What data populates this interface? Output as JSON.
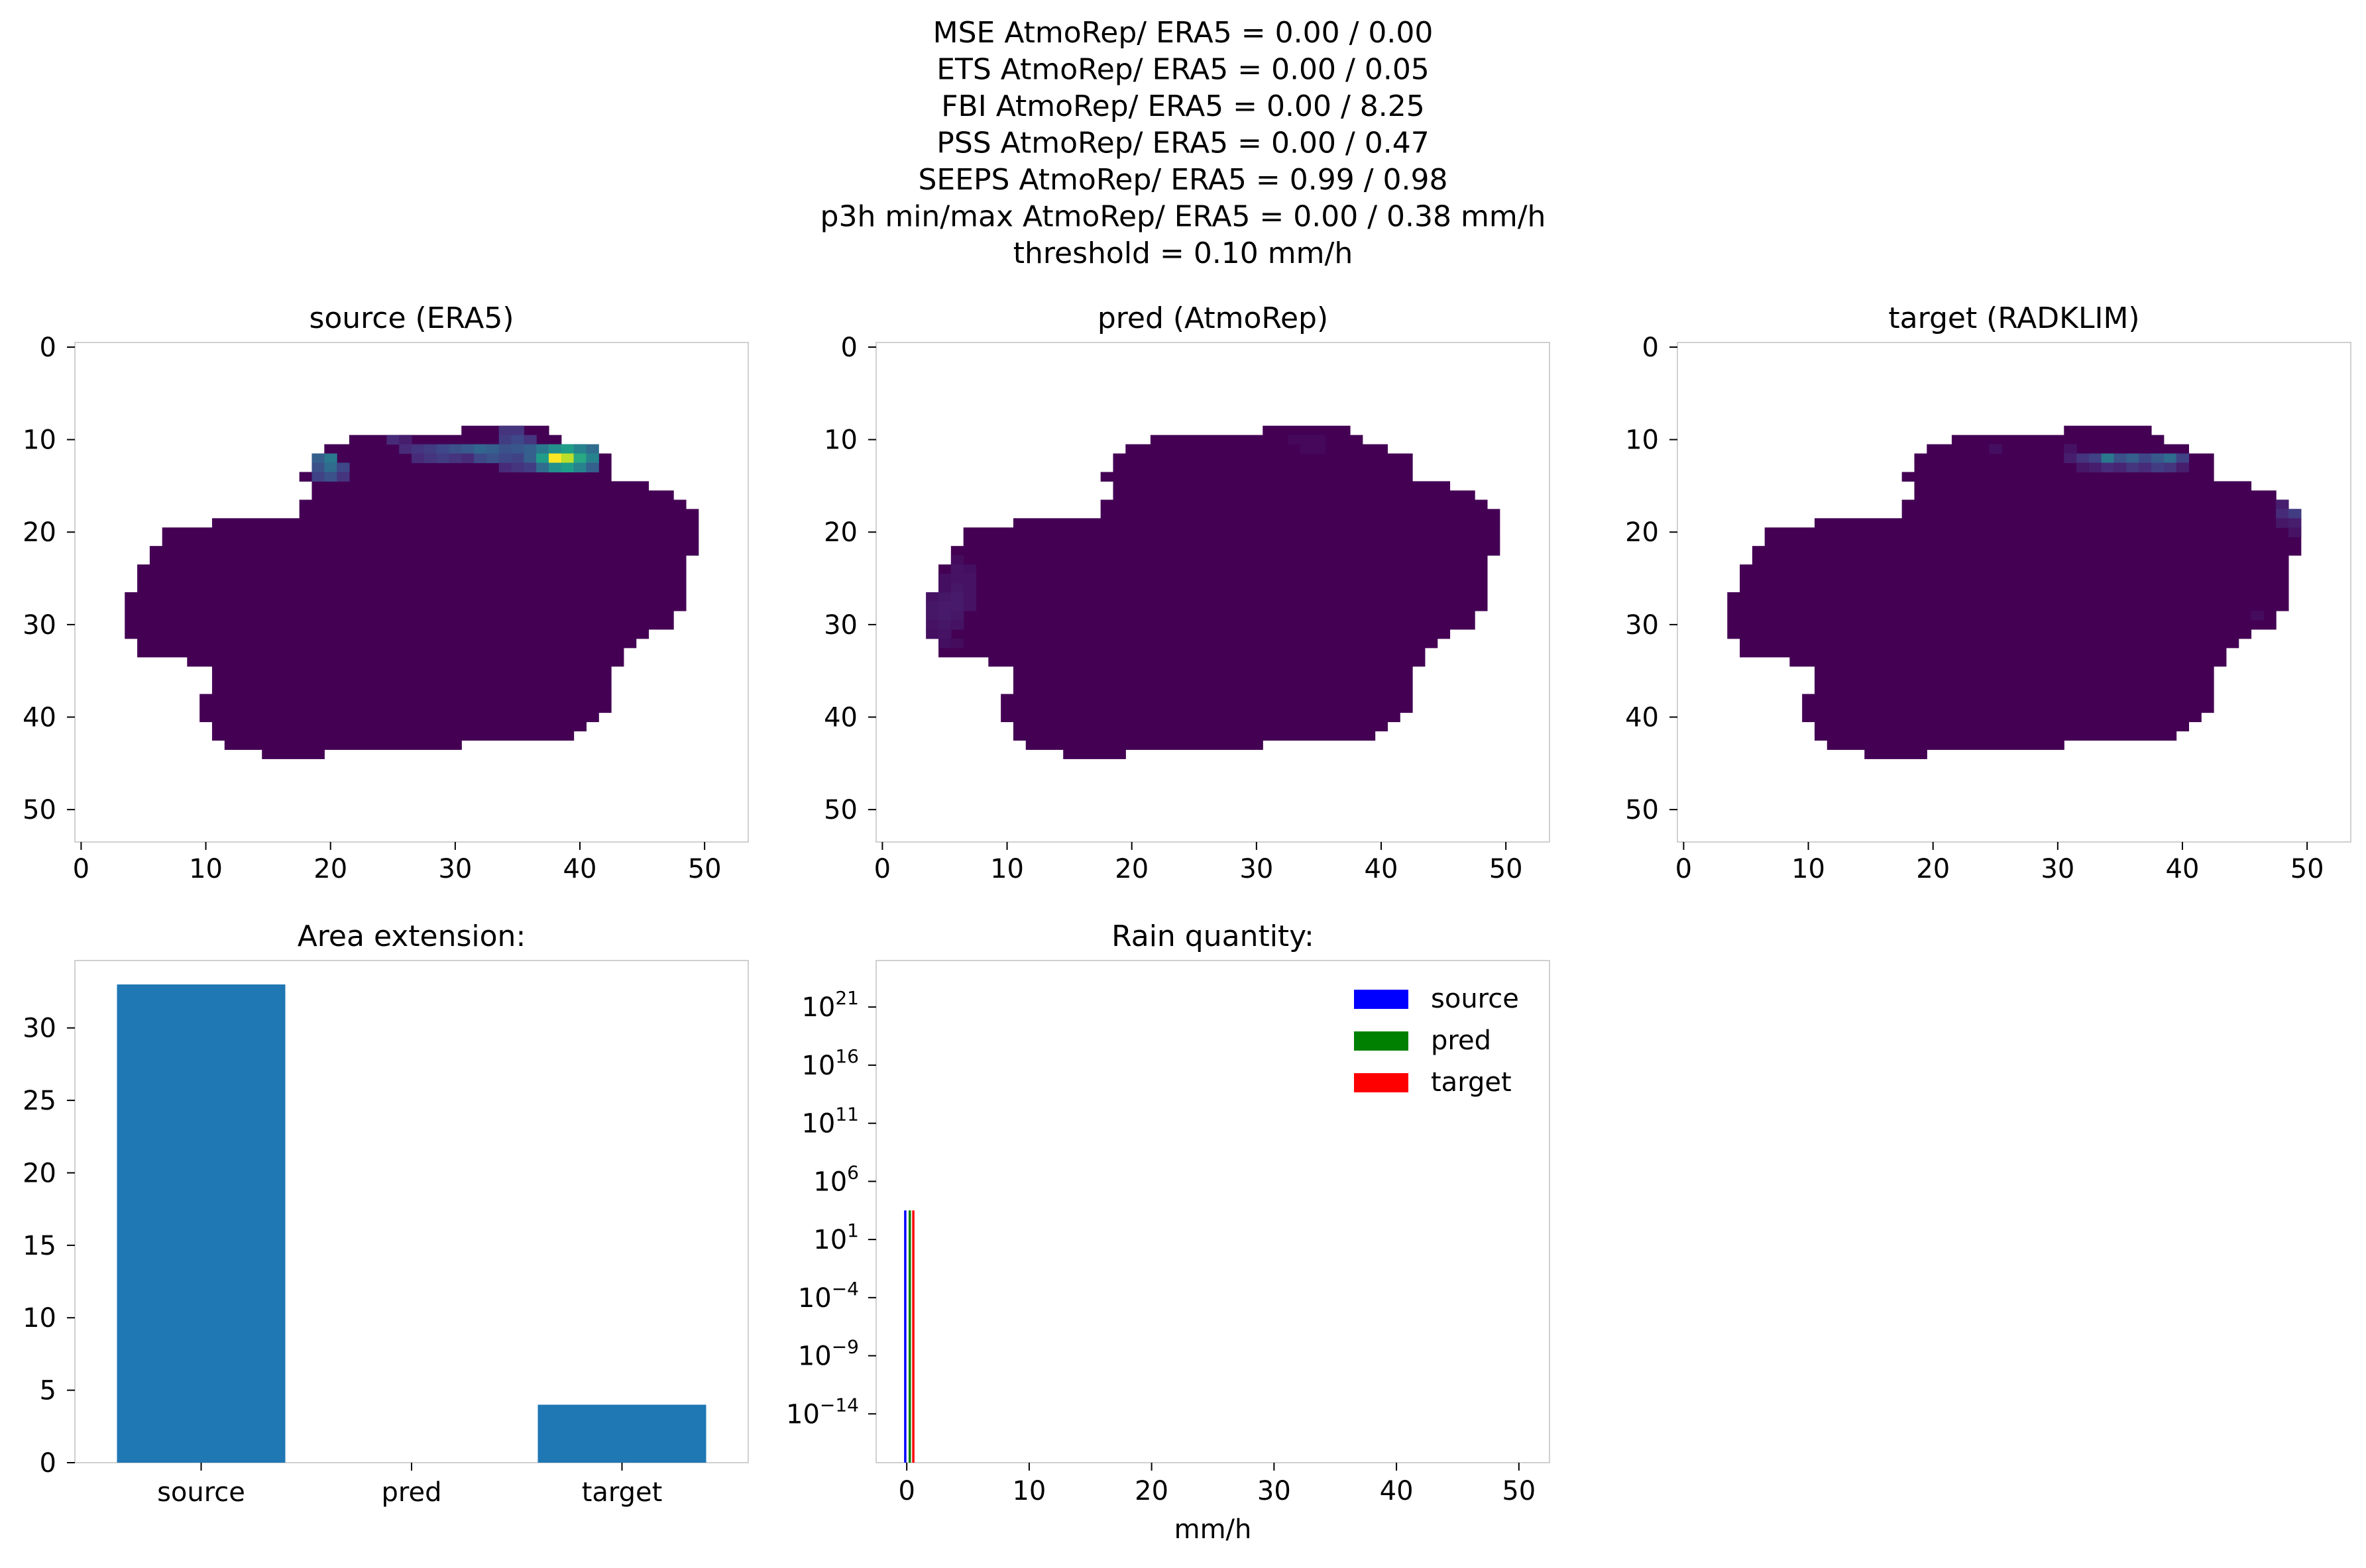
{
  "suptitle_lines": [
    "MSE AtmoRep/ ERA5 = 0.00 / 0.00",
    "ETS AtmoRep/ ERA5 = 0.00 / 0.05",
    "FBI AtmoRep/ ERA5 = 0.00 / 8.25",
    "PSS AtmoRep/ ERA5 = 0.00 / 0.47",
    "SEEPS AtmoRep/ ERA5 = 0.99 / 0.98",
    "p3h min/max AtmoRep/ ERA5 = 0.00 / 0.38 mm/h",
    "threshold = 0.10 mm/h"
  ],
  "colors": {
    "viridis_low": "#440154",
    "bar": "#1f77b4",
    "source": "#0000ff",
    "pred": "#008000",
    "target": "#ff0000",
    "frame": "#d0d0d0"
  },
  "chart_data": [
    {
      "type": "heatmap",
      "title": "source (ERA5)",
      "colormap": "viridis",
      "x_ticks": [
        0,
        10,
        20,
        30,
        40,
        50
      ],
      "y_ticks": [
        0,
        10,
        20,
        30,
        40,
        50
      ],
      "xlim": [
        -0.5,
        53.5
      ],
      "ylim": [
        53.5,
        -0.5
      ],
      "grid": false,
      "mask_rows": [
        {
          "row": 9,
          "start": 31,
          "end": 37
        },
        {
          "row": 10,
          "start": 22,
          "end": 38
        },
        {
          "row": 11,
          "start": 20,
          "end": 40
        },
        {
          "row": 12,
          "start": 19,
          "end": 42
        },
        {
          "row": 13,
          "start": 19,
          "end": 42
        },
        {
          "row": 14,
          "start": 18,
          "end": 42
        },
        {
          "row": 15,
          "start": 19,
          "end": 45
        },
        {
          "row": 16,
          "start": 19,
          "end": 47
        },
        {
          "row": 17,
          "start": 18,
          "end": 48
        },
        {
          "row": 18,
          "start": 18,
          "end": 49
        },
        {
          "row": 19,
          "start": 11,
          "end": 49
        },
        {
          "row": 20,
          "start": 7,
          "end": 49
        },
        {
          "row": 21,
          "start": 7,
          "end": 49
        },
        {
          "row": 22,
          "start": 6,
          "end": 49
        },
        {
          "row": 23,
          "start": 6,
          "end": 48
        },
        {
          "row": 24,
          "start": 5,
          "end": 48
        },
        {
          "row": 25,
          "start": 5,
          "end": 48
        },
        {
          "row": 26,
          "start": 5,
          "end": 48
        },
        {
          "row": 27,
          "start": 4,
          "end": 48
        },
        {
          "row": 28,
          "start": 4,
          "end": 48
        },
        {
          "row": 29,
          "start": 4,
          "end": 47
        },
        {
          "row": 30,
          "start": 4,
          "end": 47
        },
        {
          "row": 31,
          "start": 4,
          "end": 45
        },
        {
          "row": 32,
          "start": 5,
          "end": 44
        },
        {
          "row": 33,
          "start": 5,
          "end": 43
        },
        {
          "row": 34,
          "start": 9,
          "end": 43
        },
        {
          "row": 35,
          "start": 11,
          "end": 42
        },
        {
          "row": 36,
          "start": 11,
          "end": 42
        },
        {
          "row": 37,
          "start": 11,
          "end": 42
        },
        {
          "row": 38,
          "start": 10,
          "end": 42
        },
        {
          "row": 39,
          "start": 10,
          "end": 42
        },
        {
          "row": 40,
          "start": 10,
          "end": 41
        },
        {
          "row": 41,
          "start": 11,
          "end": 40
        },
        {
          "row": 42,
          "start": 11,
          "end": 39
        },
        {
          "row": 43,
          "start": 12,
          "end": 30
        },
        {
          "row": 44,
          "start": 15,
          "end": 19
        }
      ],
      "values": [
        {
          "row": 9,
          "col": 34,
          "v": 0.15
        },
        {
          "row": 9,
          "col": 35,
          "v": 0.15
        },
        {
          "row": 10,
          "col": 25,
          "v": 0.12
        },
        {
          "row": 10,
          "col": 26,
          "v": 0.08
        },
        {
          "row": 10,
          "col": 34,
          "v": 0.18
        },
        {
          "row": 10,
          "col": 35,
          "v": 0.22
        },
        {
          "row": 10,
          "col": 36,
          "v": 0.15
        },
        {
          "row": 11,
          "col": 26,
          "v": 0.12
        },
        {
          "row": 11,
          "col": 27,
          "v": 0.15
        },
        {
          "row": 11,
          "col": 28,
          "v": 0.18
        },
        {
          "row": 11,
          "col": 29,
          "v": 0.22
        },
        {
          "row": 11,
          "col": 30,
          "v": 0.25
        },
        {
          "row": 11,
          "col": 31,
          "v": 0.28
        },
        {
          "row": 11,
          "col": 32,
          "v": 0.33
        },
        {
          "row": 11,
          "col": 33,
          "v": 0.3
        },
        {
          "row": 11,
          "col": 34,
          "v": 0.25
        },
        {
          "row": 11,
          "col": 35,
          "v": 0.27
        },
        {
          "row": 11,
          "col": 36,
          "v": 0.3
        },
        {
          "row": 11,
          "col": 37,
          "v": 0.4
        },
        {
          "row": 11,
          "col": 38,
          "v": 0.5
        },
        {
          "row": 11,
          "col": 39,
          "v": 0.55
        },
        {
          "row": 11,
          "col": 40,
          "v": 0.45
        },
        {
          "row": 11,
          "col": 41,
          "v": 0.35
        },
        {
          "row": 12,
          "col": 19,
          "v": 0.3
        },
        {
          "row": 12,
          "col": 20,
          "v": 0.4
        },
        {
          "row": 12,
          "col": 27,
          "v": 0.12
        },
        {
          "row": 12,
          "col": 28,
          "v": 0.15
        },
        {
          "row": 12,
          "col": 29,
          "v": 0.18
        },
        {
          "row": 12,
          "col": 30,
          "v": 0.15
        },
        {
          "row": 12,
          "col": 31,
          "v": 0.12
        },
        {
          "row": 12,
          "col": 32,
          "v": 0.22
        },
        {
          "row": 12,
          "col": 33,
          "v": 0.25
        },
        {
          "row": 12,
          "col": 34,
          "v": 0.22
        },
        {
          "row": 12,
          "col": 35,
          "v": 0.2
        },
        {
          "row": 12,
          "col": 36,
          "v": 0.3
        },
        {
          "row": 12,
          "col": 37,
          "v": 0.55
        },
        {
          "row": 12,
          "col": 38,
          "v": 1.0
        },
        {
          "row": 12,
          "col": 39,
          "v": 0.9
        },
        {
          "row": 12,
          "col": 40,
          "v": 0.6
        },
        {
          "row": 12,
          "col": 41,
          "v": 0.45
        },
        {
          "row": 13,
          "col": 19,
          "v": 0.25
        },
        {
          "row": 13,
          "col": 20,
          "v": 0.35
        },
        {
          "row": 13,
          "col": 21,
          "v": 0.22
        },
        {
          "row": 13,
          "col": 34,
          "v": 0.12
        },
        {
          "row": 13,
          "col": 35,
          "v": 0.15
        },
        {
          "row": 13,
          "col": 36,
          "v": 0.18
        },
        {
          "row": 13,
          "col": 37,
          "v": 0.35
        },
        {
          "row": 13,
          "col": 38,
          "v": 0.5
        },
        {
          "row": 13,
          "col": 39,
          "v": 0.55
        },
        {
          "row": 13,
          "col": 40,
          "v": 0.45
        },
        {
          "row": 13,
          "col": 41,
          "v": 0.3
        },
        {
          "row": 14,
          "col": 19,
          "v": 0.2
        },
        {
          "row": 14,
          "col": 20,
          "v": 0.25
        },
        {
          "row": 14,
          "col": 21,
          "v": 0.15
        }
      ]
    },
    {
      "type": "heatmap",
      "title": "pred (AtmoRep)",
      "colormap": "viridis",
      "x_ticks": [
        0,
        10,
        20,
        30,
        40,
        50
      ],
      "y_ticks": [
        0,
        10,
        20,
        30,
        40,
        50
      ],
      "xlim": [
        -0.5,
        53.5
      ],
      "ylim": [
        53.5,
        -0.5
      ],
      "grid": false,
      "values": [
        {
          "row": 23,
          "col": 6,
          "v": 0.03
        },
        {
          "row": 24,
          "col": 6,
          "v": 0.05
        },
        {
          "row": 24,
          "col": 7,
          "v": 0.04
        },
        {
          "row": 25,
          "col": 5,
          "v": 0.04
        },
        {
          "row": 25,
          "col": 6,
          "v": 0.05
        },
        {
          "row": 25,
          "col": 7,
          "v": 0.05
        },
        {
          "row": 26,
          "col": 5,
          "v": 0.04
        },
        {
          "row": 26,
          "col": 6,
          "v": 0.06
        },
        {
          "row": 26,
          "col": 7,
          "v": 0.05
        },
        {
          "row": 27,
          "col": 4,
          "v": 0.05
        },
        {
          "row": 27,
          "col": 5,
          "v": 0.06
        },
        {
          "row": 27,
          "col": 6,
          "v": 0.07
        },
        {
          "row": 27,
          "col": 7,
          "v": 0.05
        },
        {
          "row": 28,
          "col": 4,
          "v": 0.06
        },
        {
          "row": 28,
          "col": 5,
          "v": 0.07
        },
        {
          "row": 28,
          "col": 6,
          "v": 0.07
        },
        {
          "row": 28,
          "col": 7,
          "v": 0.05
        },
        {
          "row": 29,
          "col": 4,
          "v": 0.06
        },
        {
          "row": 29,
          "col": 5,
          "v": 0.07
        },
        {
          "row": 29,
          "col": 6,
          "v": 0.06
        },
        {
          "row": 30,
          "col": 4,
          "v": 0.05
        },
        {
          "row": 30,
          "col": 5,
          "v": 0.06
        },
        {
          "row": 30,
          "col": 6,
          "v": 0.05
        },
        {
          "row": 31,
          "col": 4,
          "v": 0.04
        },
        {
          "row": 31,
          "col": 5,
          "v": 0.05
        },
        {
          "row": 32,
          "col": 5,
          "v": 0.04
        },
        {
          "row": 32,
          "col": 6,
          "v": 0.03
        },
        {
          "row": 10,
          "col": 33,
          "v": 0.02
        },
        {
          "row": 10,
          "col": 34,
          "v": 0.02
        },
        {
          "row": 10,
          "col": 35,
          "v": 0.02
        },
        {
          "row": 11,
          "col": 34,
          "v": 0.02
        },
        {
          "row": 11,
          "col": 35,
          "v": 0.02
        }
      ]
    },
    {
      "type": "heatmap",
      "title": "target (RADKLIM)",
      "colormap": "viridis",
      "x_ticks": [
        0,
        10,
        20,
        30,
        40,
        50
      ],
      "y_ticks": [
        0,
        10,
        20,
        30,
        40,
        50
      ],
      "xlim": [
        -0.5,
        53.5
      ],
      "ylim": [
        53.5,
        -0.5
      ],
      "grid": false,
      "values": [
        {
          "row": 11,
          "col": 25,
          "v": 0.04
        },
        {
          "row": 11,
          "col": 31,
          "v": 0.05
        },
        {
          "row": 12,
          "col": 31,
          "v": 0.08
        },
        {
          "row": 12,
          "col": 32,
          "v": 0.15
        },
        {
          "row": 12,
          "col": 33,
          "v": 0.2
        },
        {
          "row": 12,
          "col": 34,
          "v": 0.4
        },
        {
          "row": 12,
          "col": 35,
          "v": 0.25
        },
        {
          "row": 12,
          "col": 36,
          "v": 0.3
        },
        {
          "row": 12,
          "col": 37,
          "v": 0.22
        },
        {
          "row": 12,
          "col": 38,
          "v": 0.28
        },
        {
          "row": 12,
          "col": 39,
          "v": 0.35
        },
        {
          "row": 12,
          "col": 40,
          "v": 0.2
        },
        {
          "row": 13,
          "col": 32,
          "v": 0.06
        },
        {
          "row": 13,
          "col": 33,
          "v": 0.08
        },
        {
          "row": 13,
          "col": 34,
          "v": 0.12
        },
        {
          "row": 13,
          "col": 35,
          "v": 0.1
        },
        {
          "row": 13,
          "col": 36,
          "v": 0.15
        },
        {
          "row": 13,
          "col": 37,
          "v": 0.12
        },
        {
          "row": 13,
          "col": 38,
          "v": 0.18
        },
        {
          "row": 13,
          "col": 39,
          "v": 0.15
        },
        {
          "row": 13,
          "col": 40,
          "v": 0.08
        },
        {
          "row": 17,
          "col": 48,
          "v": 0.08
        },
        {
          "row": 18,
          "col": 48,
          "v": 0.12
        },
        {
          "row": 18,
          "col": 49,
          "v": 0.18
        },
        {
          "row": 19,
          "col": 48,
          "v": 0.06
        },
        {
          "row": 19,
          "col": 49,
          "v": 0.08
        },
        {
          "row": 20,
          "col": 49,
          "v": 0.05
        },
        {
          "row": 29,
          "col": 46,
          "v": 0.03
        }
      ]
    },
    {
      "type": "bar",
      "title": "Area extension:",
      "categories": [
        "source",
        "pred",
        "target"
      ],
      "values": [
        33,
        0,
        4
      ],
      "y_ticks": [
        0,
        5,
        10,
        15,
        20,
        25,
        30
      ],
      "ylim": [
        0,
        34.65
      ],
      "grid": false
    },
    {
      "type": "bar",
      "title": "Rain quantity:",
      "xlabel": "mm/h",
      "x_ticks": [
        0,
        10,
        20,
        30,
        40,
        50
      ],
      "xlim": [
        -2.5,
        52.5
      ],
      "y_scale": "log",
      "y_ticks": [
        {
          "base": "10",
          "exp": "21",
          "e": 21
        },
        {
          "base": "10",
          "exp": "16",
          "e": 16
        },
        {
          "base": "10",
          "exp": "11",
          "e": 11
        },
        {
          "base": "10",
          "exp": "6",
          "e": 6
        },
        {
          "base": "10",
          "exp": "1",
          "e": 1
        },
        {
          "base": "10",
          "exp": "−4",
          "e": -4
        },
        {
          "base": "10",
          "exp": "−9",
          "e": -9
        },
        {
          "base": "10",
          "exp": "−14",
          "e": -14
        }
      ],
      "ylim_exp": [
        -18.2,
        25
      ],
      "legend": {
        "location": "upper right",
        "entries": [
          "source",
          "pred",
          "target"
        ]
      },
      "series": [
        {
          "name": "source",
          "x": 0.0,
          "width": 0.15,
          "value_exp": 3.5
        },
        {
          "name": "pred",
          "x": 0.18,
          "width": 0.1,
          "value_exp": 3.5
        },
        {
          "name": "target",
          "x": 0.28,
          "width": 0.15,
          "value_exp": 3.5
        }
      ]
    }
  ]
}
